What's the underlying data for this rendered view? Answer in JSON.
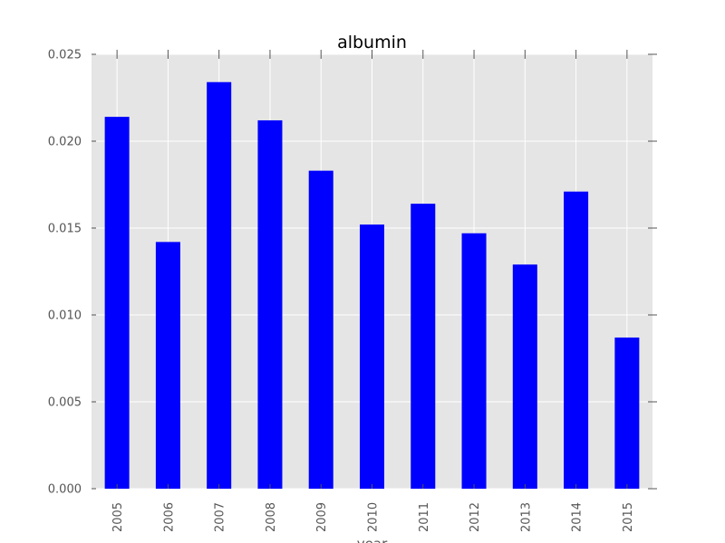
{
  "chart_data": {
    "type": "bar",
    "title": "albumin",
    "xlabel": "year",
    "ylabel": "",
    "categories": [
      "2005",
      "2006",
      "2007",
      "2008",
      "2009",
      "2010",
      "2011",
      "2012",
      "2013",
      "2014",
      "2015"
    ],
    "values": [
      0.0214,
      0.0142,
      0.0234,
      0.0212,
      0.0183,
      0.0152,
      0.0164,
      0.0147,
      0.0129,
      0.0171,
      0.0087
    ],
    "ylim": [
      0,
      0.025
    ],
    "yticks": [
      "0.000",
      "0.005",
      "0.010",
      "0.015",
      "0.020",
      "0.025"
    ],
    "grid": true,
    "legend": "none",
    "colors": {
      "bar": "#0000ff",
      "plot_background": "#e5e5e5",
      "grid": "#ffffff",
      "tick_mark": "#555555"
    }
  }
}
